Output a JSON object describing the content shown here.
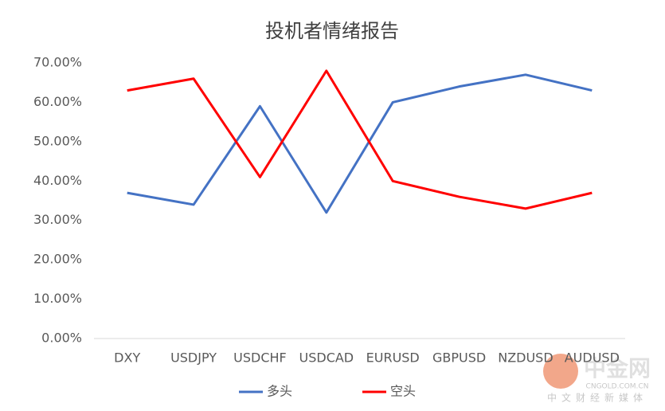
{
  "chart_data": {
    "type": "line",
    "title": "投机者情绪报告",
    "categories": [
      "DXY",
      "USDJPY",
      "USDCHF",
      "USDCAD",
      "EURUSD",
      "GBPUSD",
      "NZDUSD",
      "AUDUSD"
    ],
    "series": [
      {
        "name": "多头",
        "color": "#4472c4",
        "values": [
          37,
          34,
          59,
          32,
          60,
          64,
          67,
          63
        ]
      },
      {
        "name": "空头",
        "color": "#ff0000",
        "values": [
          63,
          66,
          41,
          68,
          40,
          36,
          33,
          37
        ]
      }
    ],
    "ylim": [
      0,
      70
    ],
    "yticks": [
      {
        "value": 0,
        "label": "0.00%"
      },
      {
        "value": 10,
        "label": "10.00%"
      },
      {
        "value": 20,
        "label": "20.00%"
      },
      {
        "value": 30,
        "label": "30.00%"
      },
      {
        "value": 40,
        "label": "40.00%"
      },
      {
        "value": 50,
        "label": "50.00%"
      },
      {
        "value": 60,
        "label": "60.00%"
      },
      {
        "value": 70,
        "label": "70.00%"
      }
    ],
    "grid": false,
    "legend": "bottom"
  },
  "watermark": {
    "brand": "中金网",
    "domain": "CNGOLD.COM.CN",
    "slogan": "中文财经新媒体"
  }
}
